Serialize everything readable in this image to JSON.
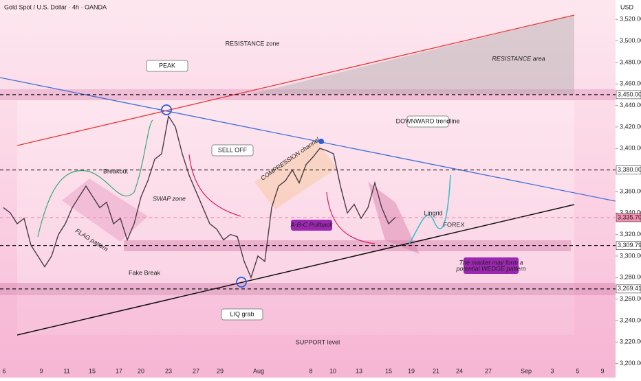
{
  "chart_data": {
    "type": "line",
    "title": "Gold Spot / U.S. Dollar · 4h · OANDA",
    "y_unit": "USD",
    "series": [
      {
        "name": "XAUUSD",
        "color": "#4a3a44",
        "values": [
          3345,
          3340,
          3330,
          3335,
          3310,
          3300,
          3290,
          3300,
          3320,
          3330,
          3345,
          3355,
          3365,
          3355,
          3345,
          3350,
          3330,
          3335,
          3315,
          3330,
          3355,
          3370,
          3390,
          3395,
          3430,
          3420,
          3395,
          3375,
          3360,
          3345,
          3330,
          3325,
          3315,
          3320,
          3318,
          3295,
          3280,
          3300,
          3295,
          3345,
          3365,
          3370,
          3380,
          3368,
          3385,
          3392,
          3400,
          3398,
          3395,
          3365,
          3340,
          3348,
          3335,
          3345,
          3368,
          3345,
          3330,
          3336
        ]
      }
    ],
    "ylim": [
      3187,
      3538
    ],
    "yticks": [
      {
        "value": 3200,
        "label": "3,200.000"
      },
      {
        "value": 3220,
        "label": "3,220.000"
      },
      {
        "value": 3240,
        "label": "3,240.000"
      },
      {
        "value": 3260,
        "label": "3,260.000"
      },
      {
        "value": 3280,
        "label": "3,280.000"
      },
      {
        "value": 3300,
        "label": "3,300.000"
      },
      {
        "value": 3320,
        "label": "3,320.000"
      },
      {
        "value": 3340,
        "label": "3,340.000"
      },
      {
        "value": 3360,
        "label": "3,360.000"
      },
      {
        "value": 3400,
        "label": "3,400.000"
      },
      {
        "value": 3420,
        "label": "3,420.000"
      },
      {
        "value": 3440,
        "label": "3,440.000"
      },
      {
        "value": 3460,
        "label": "3,460.000"
      },
      {
        "value": 3480,
        "label": "3,480.000"
      },
      {
        "value": 3500,
        "label": "3,500.000"
      },
      {
        "value": 3520,
        "label": "3,520.000"
      }
    ],
    "levels": [
      {
        "value": 3450,
        "label": "3,450.000",
        "color": "#ffffff"
      },
      {
        "value": 3380,
        "label": "3,380.000",
        "color": "#ffffff"
      },
      {
        "value": 3335.7,
        "label": "3,335.700",
        "color": "#f48fb1"
      },
      {
        "value": 3309.79,
        "label": "3,309.790",
        "color": "#ffffff"
      },
      {
        "value": 3269.412,
        "label": "3,269.412",
        "color": "#ffffff"
      }
    ],
    "xtick_labels": [
      "6",
      "9",
      "11",
      "15",
      "17",
      "20",
      "23",
      "27",
      "29",
      "Aug",
      "8",
      "10",
      "13",
      "15",
      "19",
      "21",
      "24",
      "27",
      "Sep",
      "3",
      "5",
      "9"
    ],
    "annotations": [
      "RESISTANCE zone",
      "RESISTANCE area",
      "PEAK",
      "SELL OFF",
      "COMPRESSION channel",
      "DOWNWARD trendline",
      "Breakout",
      "SWAP zone",
      "FLAG pattern",
      "Fake Break",
      "A-B-C Pullback",
      "LIQ grab",
      "SUPPORT level",
      "The market may form a",
      "potential WEDGE pattern",
      "Lingrid",
      "FOREX"
    ]
  }
}
